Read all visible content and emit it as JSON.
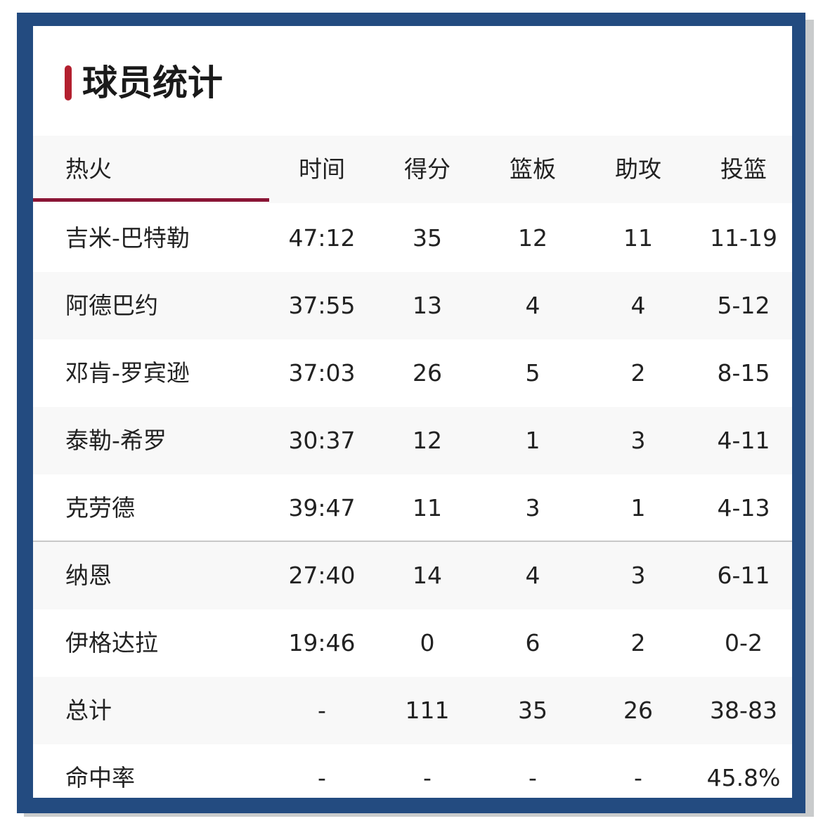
{
  "title": "球员统计",
  "colors": {
    "frame": "#234b80",
    "accent": "#b3202f",
    "tab_underline": "#8a1535"
  },
  "header": {
    "team": "热火",
    "columns": [
      "时间",
      "得分",
      "篮板",
      "助攻",
      "投篮"
    ]
  },
  "starters": [
    {
      "name": "吉米-巴特勒",
      "stats": [
        "47:12",
        "35",
        "12",
        "11",
        "11-19"
      ]
    },
    {
      "name": "阿德巴约",
      "stats": [
        "37:55",
        "13",
        "4",
        "4",
        "5-12"
      ]
    },
    {
      "name": "邓肯-罗宾逊",
      "stats": [
        "37:03",
        "26",
        "5",
        "2",
        "8-15"
      ]
    },
    {
      "name": "泰勒-希罗",
      "stats": [
        "30:37",
        "12",
        "1",
        "3",
        "4-11"
      ]
    },
    {
      "name": "克劳德",
      "stats": [
        "39:47",
        "11",
        "3",
        "1",
        "4-13"
      ]
    }
  ],
  "bench": [
    {
      "name": "纳恩",
      "stats": [
        "27:40",
        "14",
        "4",
        "3",
        "6-11"
      ]
    },
    {
      "name": "伊格达拉",
      "stats": [
        "19:46",
        "0",
        "6",
        "2",
        "0-2"
      ]
    },
    {
      "name": "总计",
      "stats": [
        "-",
        "111",
        "35",
        "26",
        "38-83"
      ]
    },
    {
      "name": "命中率",
      "stats": [
        "-",
        "-",
        "-",
        "-",
        "45.8%"
      ]
    }
  ]
}
